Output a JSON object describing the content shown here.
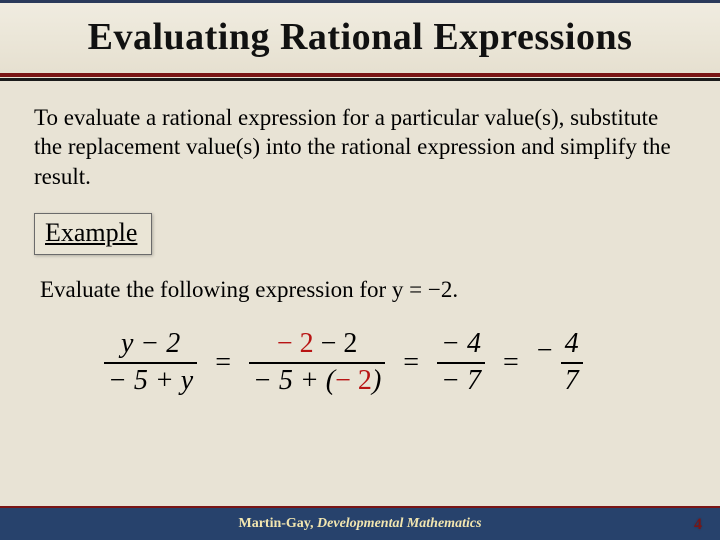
{
  "title": "Evaluating Rational Expressions",
  "intro": "To evaluate a rational expression for a particular value(s), substitute the replacement value(s) into the rational expression and simplify the result.",
  "example_label": "Example",
  "prompt": "Evaluate the following expression for y = −2.",
  "equation": {
    "step1": {
      "num": "y − 2",
      "den": "− 5 + y"
    },
    "step2": {
      "num_red": "− 2",
      "num_tail": " − 2",
      "den_pre": "− 5 + (",
      "den_red": "− 2",
      "den_post": ")"
    },
    "step3": {
      "num": "− 4",
      "den": "− 7"
    },
    "step4": {
      "num": "4",
      "den": "7"
    }
  },
  "footer_author": "Martin-Gay, ",
  "footer_title": "Developmental Mathematics",
  "page_number": "4",
  "colors": {
    "background": "#e8e3d5",
    "title_border_top": "#2a3a5a",
    "title_border_bottom": "#7a1515",
    "footer_bg": "#27426c",
    "footer_text": "#f2e6b0",
    "substitution_red": "#b81414"
  }
}
